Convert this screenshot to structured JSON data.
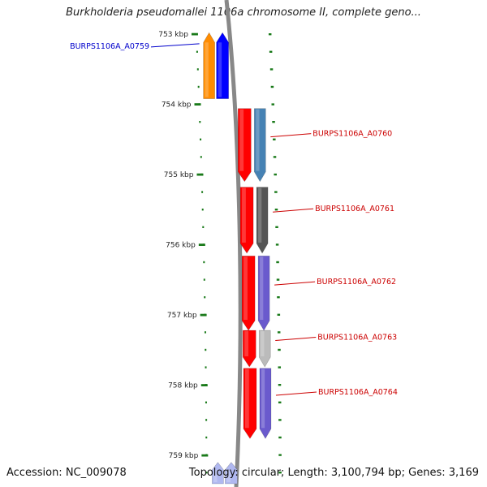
{
  "header": {
    "title": "Burkholderia pseudomallei 1106a chromosome II, complete geno..."
  },
  "footer": {
    "accession": "Accession: NC_009078",
    "summary": "Topology: circular; Length: 3,100,794 bp; Genes: 3,169"
  },
  "ruler": {
    "unit": "kbp",
    "ticks": [
      {
        "label": "753 kbp",
        "kbp": 753
      },
      {
        "label": "754 kbp",
        "kbp": 754
      },
      {
        "label": "755 kbp",
        "kbp": 755
      },
      {
        "label": "756 kbp",
        "kbp": 756
      },
      {
        "label": "757 kbp",
        "kbp": 757
      },
      {
        "label": "758 kbp",
        "kbp": 758
      },
      {
        "label": "759 kbp",
        "kbp": 759
      }
    ]
  },
  "genes": [
    {
      "label": "BURPS1106A_A0759",
      "start_kbp": 752.98,
      "end_kbp": 753.92,
      "strand": "reverse",
      "cog_color": "#ff8c00",
      "orf_color": "#0000ff",
      "label_color": "#0000cc"
    },
    {
      "label": "BURPS1106A_A0760",
      "start_kbp": 754.06,
      "end_kbp": 755.1,
      "strand": "forward",
      "cog_color": "#4682b4",
      "orf_color": "#ff0000",
      "label_color": "#cc0000"
    },
    {
      "label": "BURPS1106A_A0761",
      "start_kbp": 755.18,
      "end_kbp": 756.12,
      "strand": "forward",
      "cog_color": "#555555",
      "orf_color": "#ff0000",
      "label_color": "#cc0000"
    },
    {
      "label": "BURPS1106A_A0762",
      "start_kbp": 756.16,
      "end_kbp": 757.22,
      "strand": "forward",
      "cog_color": "#6a5acd",
      "orf_color": "#ff0000",
      "label_color": "#cc0000"
    },
    {
      "label": "BURPS1106A_A0763",
      "start_kbp": 757.22,
      "end_kbp": 757.74,
      "strand": "forward",
      "cog_color": "#bbbbbb",
      "orf_color": "#ff0000",
      "label_color": "#cc0000"
    },
    {
      "label": "BURPS1106A_A0764",
      "start_kbp": 757.76,
      "end_kbp": 758.76,
      "strand": "forward",
      "cog_color": "#6a5acd",
      "orf_color": "#ff0000",
      "label_color": "#cc0000"
    },
    {
      "label": "",
      "start_kbp": 759.1,
      "end_kbp": 759.5,
      "strand": "reverse",
      "cog_color": "#b0b8f0",
      "orf_color": "#b0b8f0",
      "label_color": "#cc0000"
    }
  ],
  "colors": {
    "backbone": "#888888",
    "ruler_green": "#1a7a1a"
  }
}
